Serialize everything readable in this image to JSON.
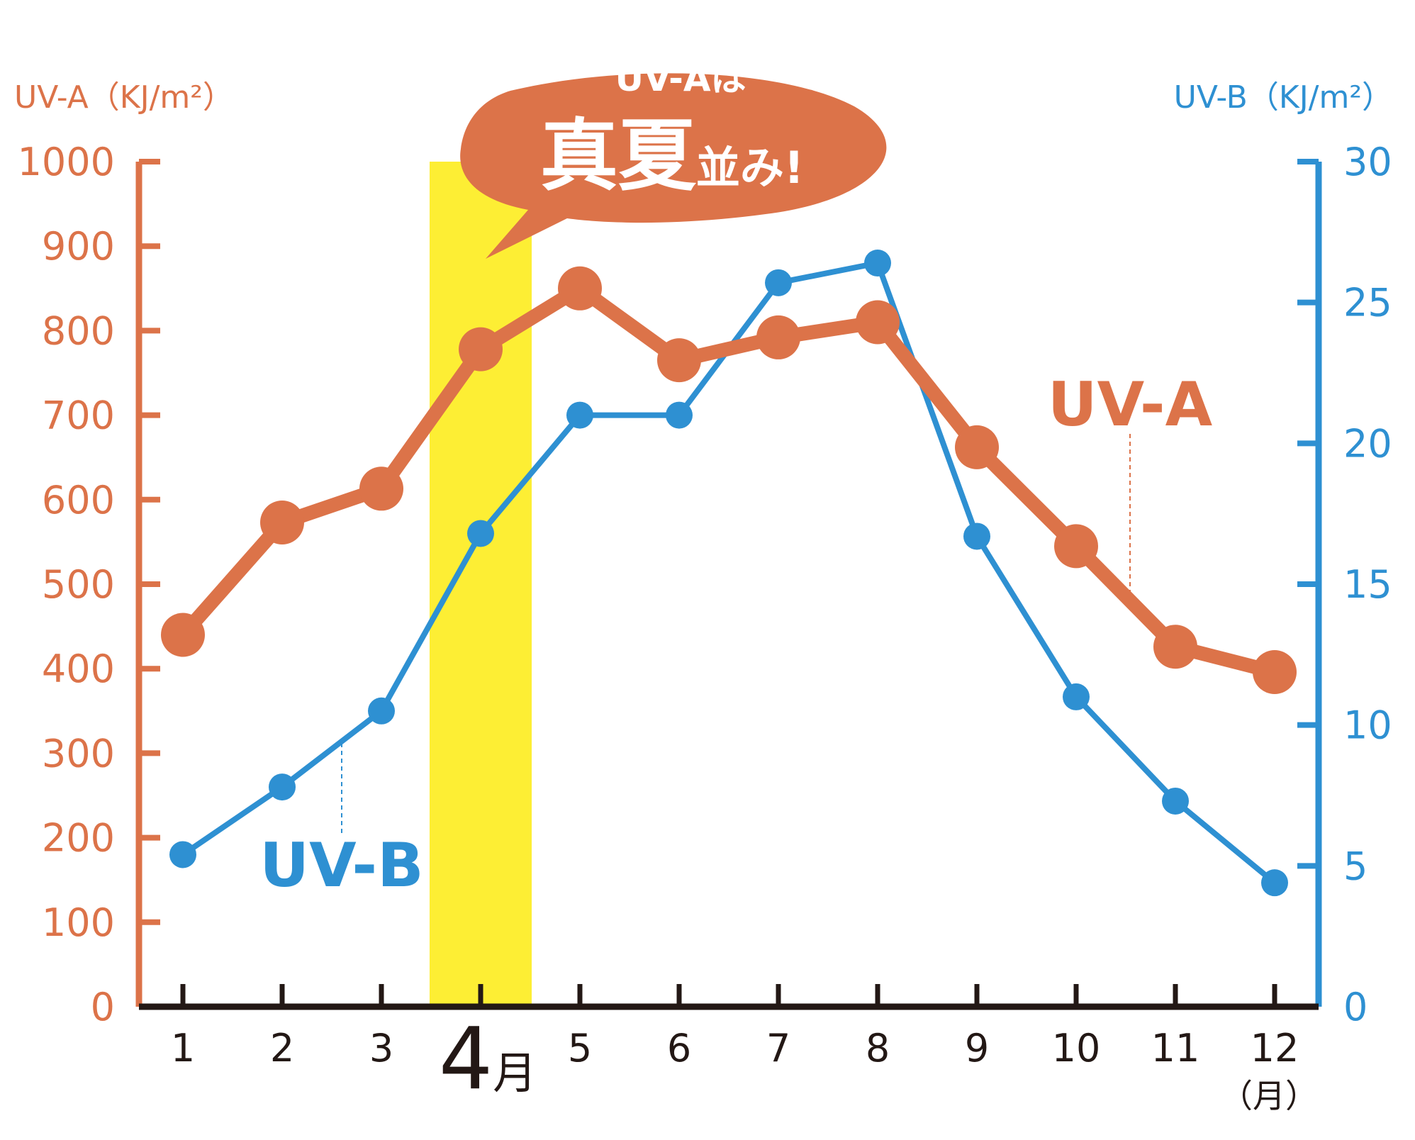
{
  "chart_data": {
    "type": "line",
    "categories": [
      "1",
      "2",
      "3",
      "4",
      "5",
      "6",
      "7",
      "8",
      "9",
      "10",
      "11",
      "12"
    ],
    "highlight_label": "4",
    "highlight_suffix": "月",
    "x_unit": "（月）",
    "callout": {
      "line1": "UV-Aは",
      "big": "真夏",
      "small": "並み!"
    },
    "axes": {
      "left": {
        "label": "UV-A（KJ/m²）",
        "ylim": [
          0,
          1000
        ],
        "ticks": [
          "0",
          "100",
          "200",
          "300",
          "400",
          "500",
          "600",
          "700",
          "800",
          "900",
          "1000"
        ],
        "tick_values": [
          0,
          100,
          200,
          300,
          400,
          500,
          600,
          700,
          800,
          900,
          1000
        ],
        "color": "#dc7349"
      },
      "right": {
        "label": "UV-B（KJ/m²）",
        "ylim": [
          0,
          30
        ],
        "ticks": [
          "0",
          "5",
          "10",
          "15",
          "20",
          "25",
          "30"
        ],
        "tick_values": [
          0,
          5,
          10,
          15,
          20,
          25,
          30
        ],
        "color": "#2e90d2"
      }
    },
    "series": [
      {
        "name": "UV-A",
        "axis": "left",
        "color": "#dc7349",
        "values": [
          440,
          573,
          613,
          778,
          850,
          765,
          792,
          810,
          662,
          545,
          426,
          396
        ]
      },
      {
        "name": "UV-B",
        "axis": "right",
        "color": "#2e90d2",
        "values": [
          5.4,
          7.8,
          10.5,
          16.8,
          21.0,
          21.0,
          25.7,
          26.4,
          16.7,
          11.0,
          7.3,
          4.4
        ]
      }
    ],
    "highlight_color": "#fdee34",
    "axis_color": "#231815",
    "legend": "inline-labels",
    "grid": false
  }
}
